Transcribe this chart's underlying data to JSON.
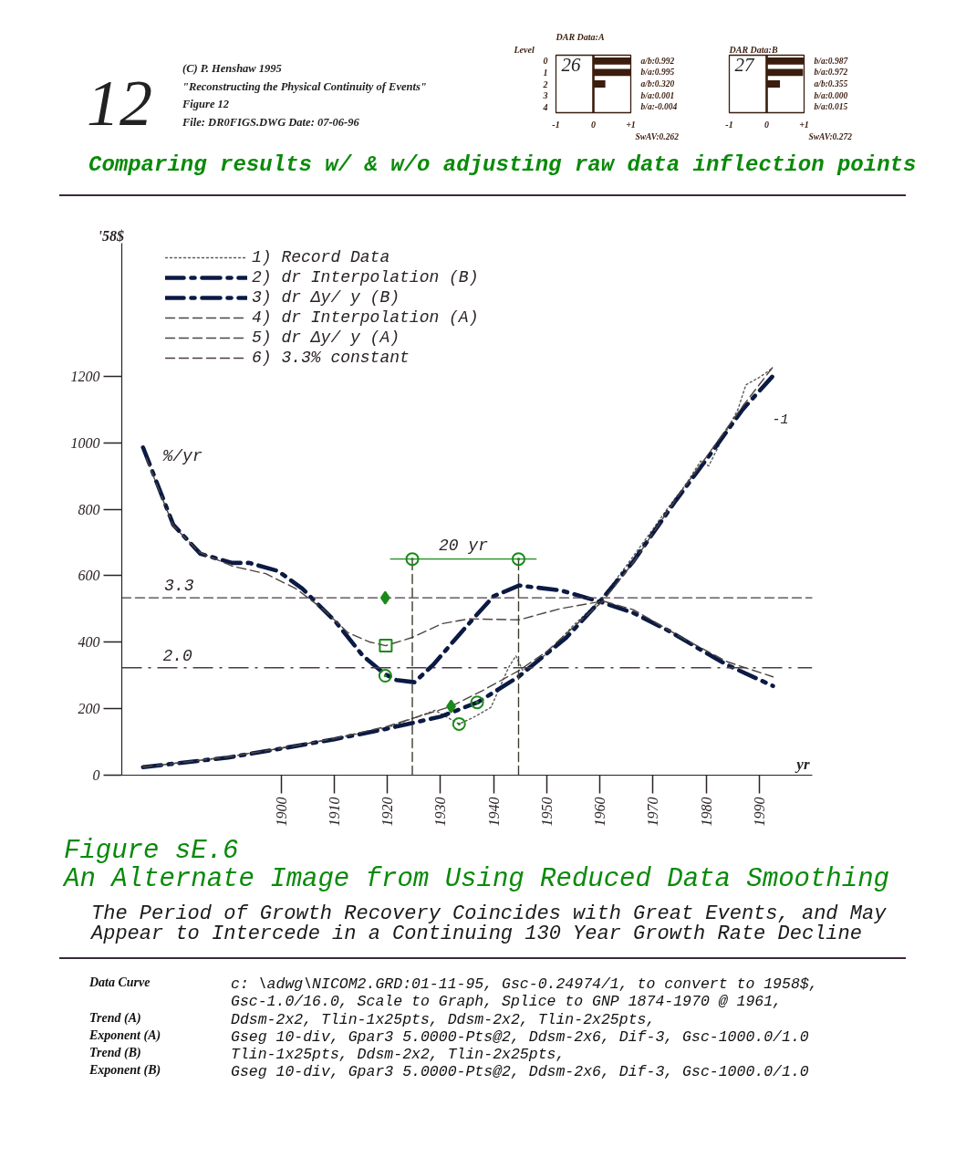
{
  "chart_data": [
    {
      "type": "other",
      "title": "12",
      "annotations": [
        "(C) P. Henshaw 1995",
        "\"Reconstructing the Physical Continuity of Events\"",
        "Figure 12",
        "File: DR0FIGS.DWG  Date: 07-06-96"
      ]
    },
    {
      "type": "bar",
      "orientation": "horizontal",
      "title": "DAR Data:A",
      "ylabel": "Level",
      "categories": [
        "0",
        "1",
        "2",
        "3",
        "4"
      ],
      "values": [
        0.992,
        0.995,
        0.32,
        0.001,
        -0.004
      ],
      "value_labels": [
        "a/b:0.992",
        "b/a:0.995",
        "a/b:0.320",
        "b/a:0.001",
        "b/a:-0.004"
      ],
      "color": "#3b1d0e",
      "xlim": [
        -1,
        1
      ],
      "xticks": [
        -1,
        0,
        {
          "value": 1,
          "label": "+1"
        }
      ],
      "ref_lines": [
        {
          "axis": "x",
          "value": 0,
          "color": "#3b1d0e"
        }
      ],
      "annotations": [
        "26",
        "SwAV:0.262"
      ]
    },
    {
      "type": "bar",
      "orientation": "horizontal",
      "title": "DAR Data:B",
      "categories": [
        "0",
        "1",
        "2",
        "3",
        "4"
      ],
      "tick_labels": "x",
      "values": [
        0.987,
        0.972,
        0.355,
        0,
        0.015
      ],
      "value_labels": [
        "b/a:0.987",
        "b/a:0.972",
        "a/b:0.355",
        "b/a:0.000",
        "b/a:0.015"
      ],
      "color": "#3b1d0e",
      "xlim": [
        -1,
        1
      ],
      "xticks": [
        -1,
        0,
        {
          "value": 1,
          "label": "+1"
        }
      ],
      "ref_lines": [
        {
          "axis": "x",
          "value": 0,
          "color": "#3b1d0e"
        }
      ],
      "annotations": [
        "27",
        "SwAV:0.272"
      ]
    },
    {
      "type": "line",
      "title": "Comparing results w/ & w/o adjusting raw data inflection points",
      "xlabel": "yr",
      "ylabel": "'58$",
      "y2label": "%/yr",
      "xlim": [
        1870,
        2000
      ],
      "xticks": [
        1900,
        1910,
        1920,
        1930,
        1940,
        1950,
        1960,
        1970,
        1980,
        1990
      ],
      "ylim": [
        0,
        1600
      ],
      "yticks": [
        0,
        200,
        400,
        600,
        800,
        1000,
        1200
      ],
      "y2lim": [
        0,
        9.9
      ],
      "legend": "top left",
      "series": [
        {
          "name": "1) Record Data",
          "type": "line",
          "color": "#5a5a5a",
          "line_style": "dotted",
          "x": [
            1874,
            1880,
            1890,
            1900,
            1910,
            1920,
            1925,
            1929,
            1931.5,
            1933.5,
            1936,
            1939.5,
            1942.8,
            1944.2,
            1945.5,
            1950,
            1955,
            1960,
            1965,
            1970,
            1973,
            1976,
            1979,
            1980.5,
            1983,
            1986,
            1987.5,
            1990,
            1992.6
          ],
          "values": [
            24,
            36,
            55,
            82,
            110,
            143,
            172,
            195,
            172,
            154,
            172,
            204,
            323,
            359,
            314,
            365,
            450,
            525,
            630,
            740,
            808,
            870,
            945,
            930,
            1010,
            1100,
            1174,
            1196,
            1225
          ]
        },
        {
          "type": "scatter",
          "color": "#1a8a1a",
          "marker": "circle",
          "x": [
            1933.5
          ],
          "values": [
            154
          ]
        },
        {
          "name": "2) dr Interpolation (B)",
          "type": "line",
          "color": "#0b1a44",
          "line_style": "dashed",
          "x": [
            1874,
            1880,
            1890,
            1900,
            1910,
            1920,
            1925,
            1930,
            1937,
            1944.7,
            1953.7,
            1960.6,
            1966.3,
            1974.3,
            1981.1,
            1986.9,
            1992.6
          ],
          "values": [
            24,
            35,
            53,
            80,
            108,
            140,
            158,
            176,
            219,
            296,
            414,
            533,
            643,
            826,
            972,
            1100,
            1201
          ]
        },
        {
          "type": "scatter",
          "color": "#1a8a1a",
          "marker": "circle",
          "x": [
            1936.9
          ],
          "values": [
            219
          ]
        },
        {
          "name": "3) dr Δy/ y (B)",
          "type": "line",
          "axis": "y2",
          "color": "#0b1a44",
          "line_style": "dashed",
          "x": [
            1874,
            1879.7,
            1884.8,
            1890.8,
            1894,
            1899.4,
            1904,
            1910.3,
            1915.4,
            1919.4,
            1921.7,
            1925.1,
            1928.6,
            1932.6,
            1936.6,
            1940,
            1944.8,
            1952.6,
            1960.6,
            1966.3,
            1973.1,
            1978.9,
            1984,
            1992.6
          ],
          "values": [
            6.1,
            4.66,
            4.12,
            3.95,
            3.95,
            3.8,
            3.47,
            2.85,
            2.22,
            1.89,
            1.77,
            1.73,
            2.05,
            2.51,
            2.96,
            3.33,
            3.53,
            3.44,
            3.21,
            3.02,
            2.68,
            2.34,
            2.05,
            1.66
          ]
        },
        {
          "type": "scatter",
          "axis": "y2",
          "color": "#1a8a1a",
          "marker": "circle",
          "x": [
            1919.6
          ],
          "values": [
            1.85
          ]
        },
        {
          "name": "4) dr Interpolation (A)",
          "type": "line",
          "color": "#4d4540",
          "line_style": "dashed",
          "x": [
            1874,
            1890,
            1900,
            1910,
            1920,
            1925,
            1932,
            1938,
            1944.7,
            1950,
            1955,
            1960.6,
            1966.3,
            1974.3,
            1981.1,
            1986.9,
            1992.6
          ],
          "values": [
            24,
            55,
            81,
            110,
            147,
            172,
            207,
            255,
            314,
            372,
            445,
            524,
            640,
            830,
            980,
            1110,
            1228
          ]
        },
        {
          "type": "scatter",
          "color": "#1a8a1a",
          "marker": "diamond",
          "x": [
            1932
          ],
          "values": [
            207
          ]
        },
        {
          "name": "5) dr Δy/ y (A)",
          "type": "line",
          "axis": "y2",
          "color": "#4d4540",
          "line_style": "dashed",
          "x": [
            1874.6,
            1879.7,
            1884.6,
            1890.8,
            1897.1,
            1902.8,
            1908,
            1912.6,
            1916.6,
            1919.7,
            1924.6,
            1930.3,
            1935.4,
            1944.8,
            1952.6,
            1960.6,
            1966.3,
            1975.4,
            1984,
            1992.6
          ],
          "values": [
            5.9,
            4.64,
            4.15,
            3.89,
            3.75,
            3.47,
            3.08,
            2.65,
            2.48,
            2.41,
            2.56,
            2.82,
            2.91,
            2.89,
            3.1,
            3.24,
            3.08,
            2.56,
            2.11,
            1.83
          ]
        },
        {
          "type": "scatter",
          "axis": "y2",
          "color": "#1a8a1a",
          "marker": "square",
          "x": [
            1919.7
          ],
          "values": [
            2.41
          ]
        },
        {
          "name": "6) 3.3% constant",
          "type": "line",
          "axis": "y2",
          "color": "#4b3b48",
          "line_style": "dashed",
          "x": [
            1870,
            1878,
            2000
          ],
          "values": [
            3.3,
            3.3,
            3.3
          ],
          "value_labels": [
            null,
            "3.3",
            null
          ]
        },
        {
          "type": "scatter",
          "axis": "y2",
          "color": "#1a8a1a",
          "marker": "diamond",
          "x": [
            1919.6
          ],
          "values": [
            3.3
          ]
        },
        {
          "type": "line",
          "color": "#3c3c30",
          "line_style": "dashed",
          "x": [
            1924.7,
            1924.7
          ],
          "values": [
            0,
            650
          ]
        },
        {
          "type": "line",
          "color": "#3c3c30",
          "line_style": "dashed",
          "x": [
            1944.7,
            1944.7
          ],
          "values": [
            0,
            650
          ]
        },
        {
          "type": "line",
          "color": "#1a8a1a",
          "line_style": "solid",
          "x": [
            1920.6,
            1948
          ],
          "values": [
            650,
            650
          ]
        },
        {
          "type": "scatter",
          "color": "#1a8a1a",
          "marker": "circle",
          "x": [
            1924.7,
            1944.7
          ],
          "values": [
            650,
            650
          ]
        }
      ],
      "ref_lines": [
        {
          "axis": "y2",
          "value": 2.0,
          "label": "2.0",
          "color": "#4b3b48",
          "line_style": "dashed"
        }
      ],
      "annotations": [
        {
          "text": "20 yr",
          "x": 1934.3,
          "y": 650
        },
        "-1"
      ]
    },
    {
      "type": "other",
      "title": "Figure sE.6\nAn Alternate Image from Using Reduced Data Smoothing",
      "subtitle": "The Period of Growth Recovery Coincides with Great Events, and May\nAppear to Intercede in a Continuing 130 Year Growth Rate Decline",
      "annotations": [
        "Data Curve\tc: \\adwg\\NICOM2.GRD:01-11-95, Gsc-0.24974/1, to convert to 1958$,",
        "\tGsc-1.0/16.0, Scale to Graph, Splice to GNP 1874-1970 @ 1961,",
        "Trend (A)\tDdsm-2x2, Tlin-1x25pts, Ddsm-2x2, Tlin-2x25pts,",
        "Exponent (A)\tGseg 10-div, Gpar3 5.0000-Pts@2, Ddsm-2x6, Dif-3, Gsc-1000.0/1.0",
        "Trend (B)\tTlin-1x25pts, Ddsm-2x2, Tlin-2x25pts,",
        "Exponent (B)\tGseg 10-div, Gpar3 5.0000-Pts@2, Ddsm-2x6, Dif-3, Gsc-1000.0/1.0"
      ]
    }
  ]
}
